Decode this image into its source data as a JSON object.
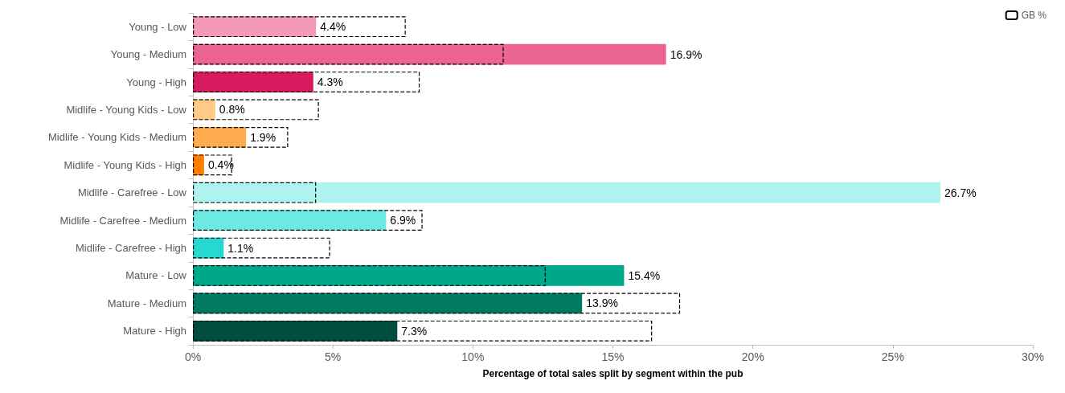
{
  "chart_data": {
    "type": "bar",
    "orientation": "horizontal",
    "xlabel": "Percentage of total sales split by segment within the pub",
    "categories": [
      "Young - Low",
      "Young - Medium",
      "Young - High",
      "Midlife - Young Kids - Low",
      "Midlife - Young Kids - Medium",
      "Midlife - Young Kids - High",
      "Midlife - Carefree - Low",
      "Midlife - Carefree - Medium",
      "Midlife - Carefree - High",
      "Mature - Low",
      "Mature - Medium",
      "Mature - High"
    ],
    "series": [
      {
        "colors": [
          "#f49ab8",
          "#ec6592",
          "#d81b60",
          "#ffcc88",
          "#ffab4f",
          "#ff8000",
          "#aff3ef",
          "#6ce9e3",
          "#27d8d1",
          "#00a88a",
          "#007a63",
          "#004d3d"
        ],
        "values": [
          4.4,
          16.9,
          4.3,
          0.8,
          1.9,
          0.4,
          26.7,
          6.9,
          1.1,
          15.4,
          13.9,
          7.3
        ],
        "value_labels": [
          "4.4%",
          "16.9%",
          "4.3%",
          "0.8%",
          "1.9%",
          "0.4%",
          "26.7%",
          "6.9%",
          "1.1%",
          "15.4%",
          "13.9%",
          "7.3%"
        ]
      },
      {
        "name": "GB %",
        "color": "#000000",
        "line_style": "dashed",
        "values": [
          7.6,
          11.1,
          8.1,
          4.5,
          3.4,
          1.4,
          4.4,
          8.2,
          4.9,
          12.6,
          17.4,
          16.4
        ]
      }
    ],
    "xlim": [
      0,
      30
    ],
    "xticks": [
      {
        "value": 0,
        "label": "0%"
      },
      {
        "value": 5,
        "label": "5%"
      },
      {
        "value": 10,
        "label": "10%"
      },
      {
        "value": 15,
        "label": "15%"
      },
      {
        "value": 20,
        "label": "20%"
      },
      {
        "value": 25,
        "label": "25%"
      },
      {
        "value": 30,
        "label": "30%"
      }
    ],
    "grid": false,
    "legend": "top right"
  }
}
